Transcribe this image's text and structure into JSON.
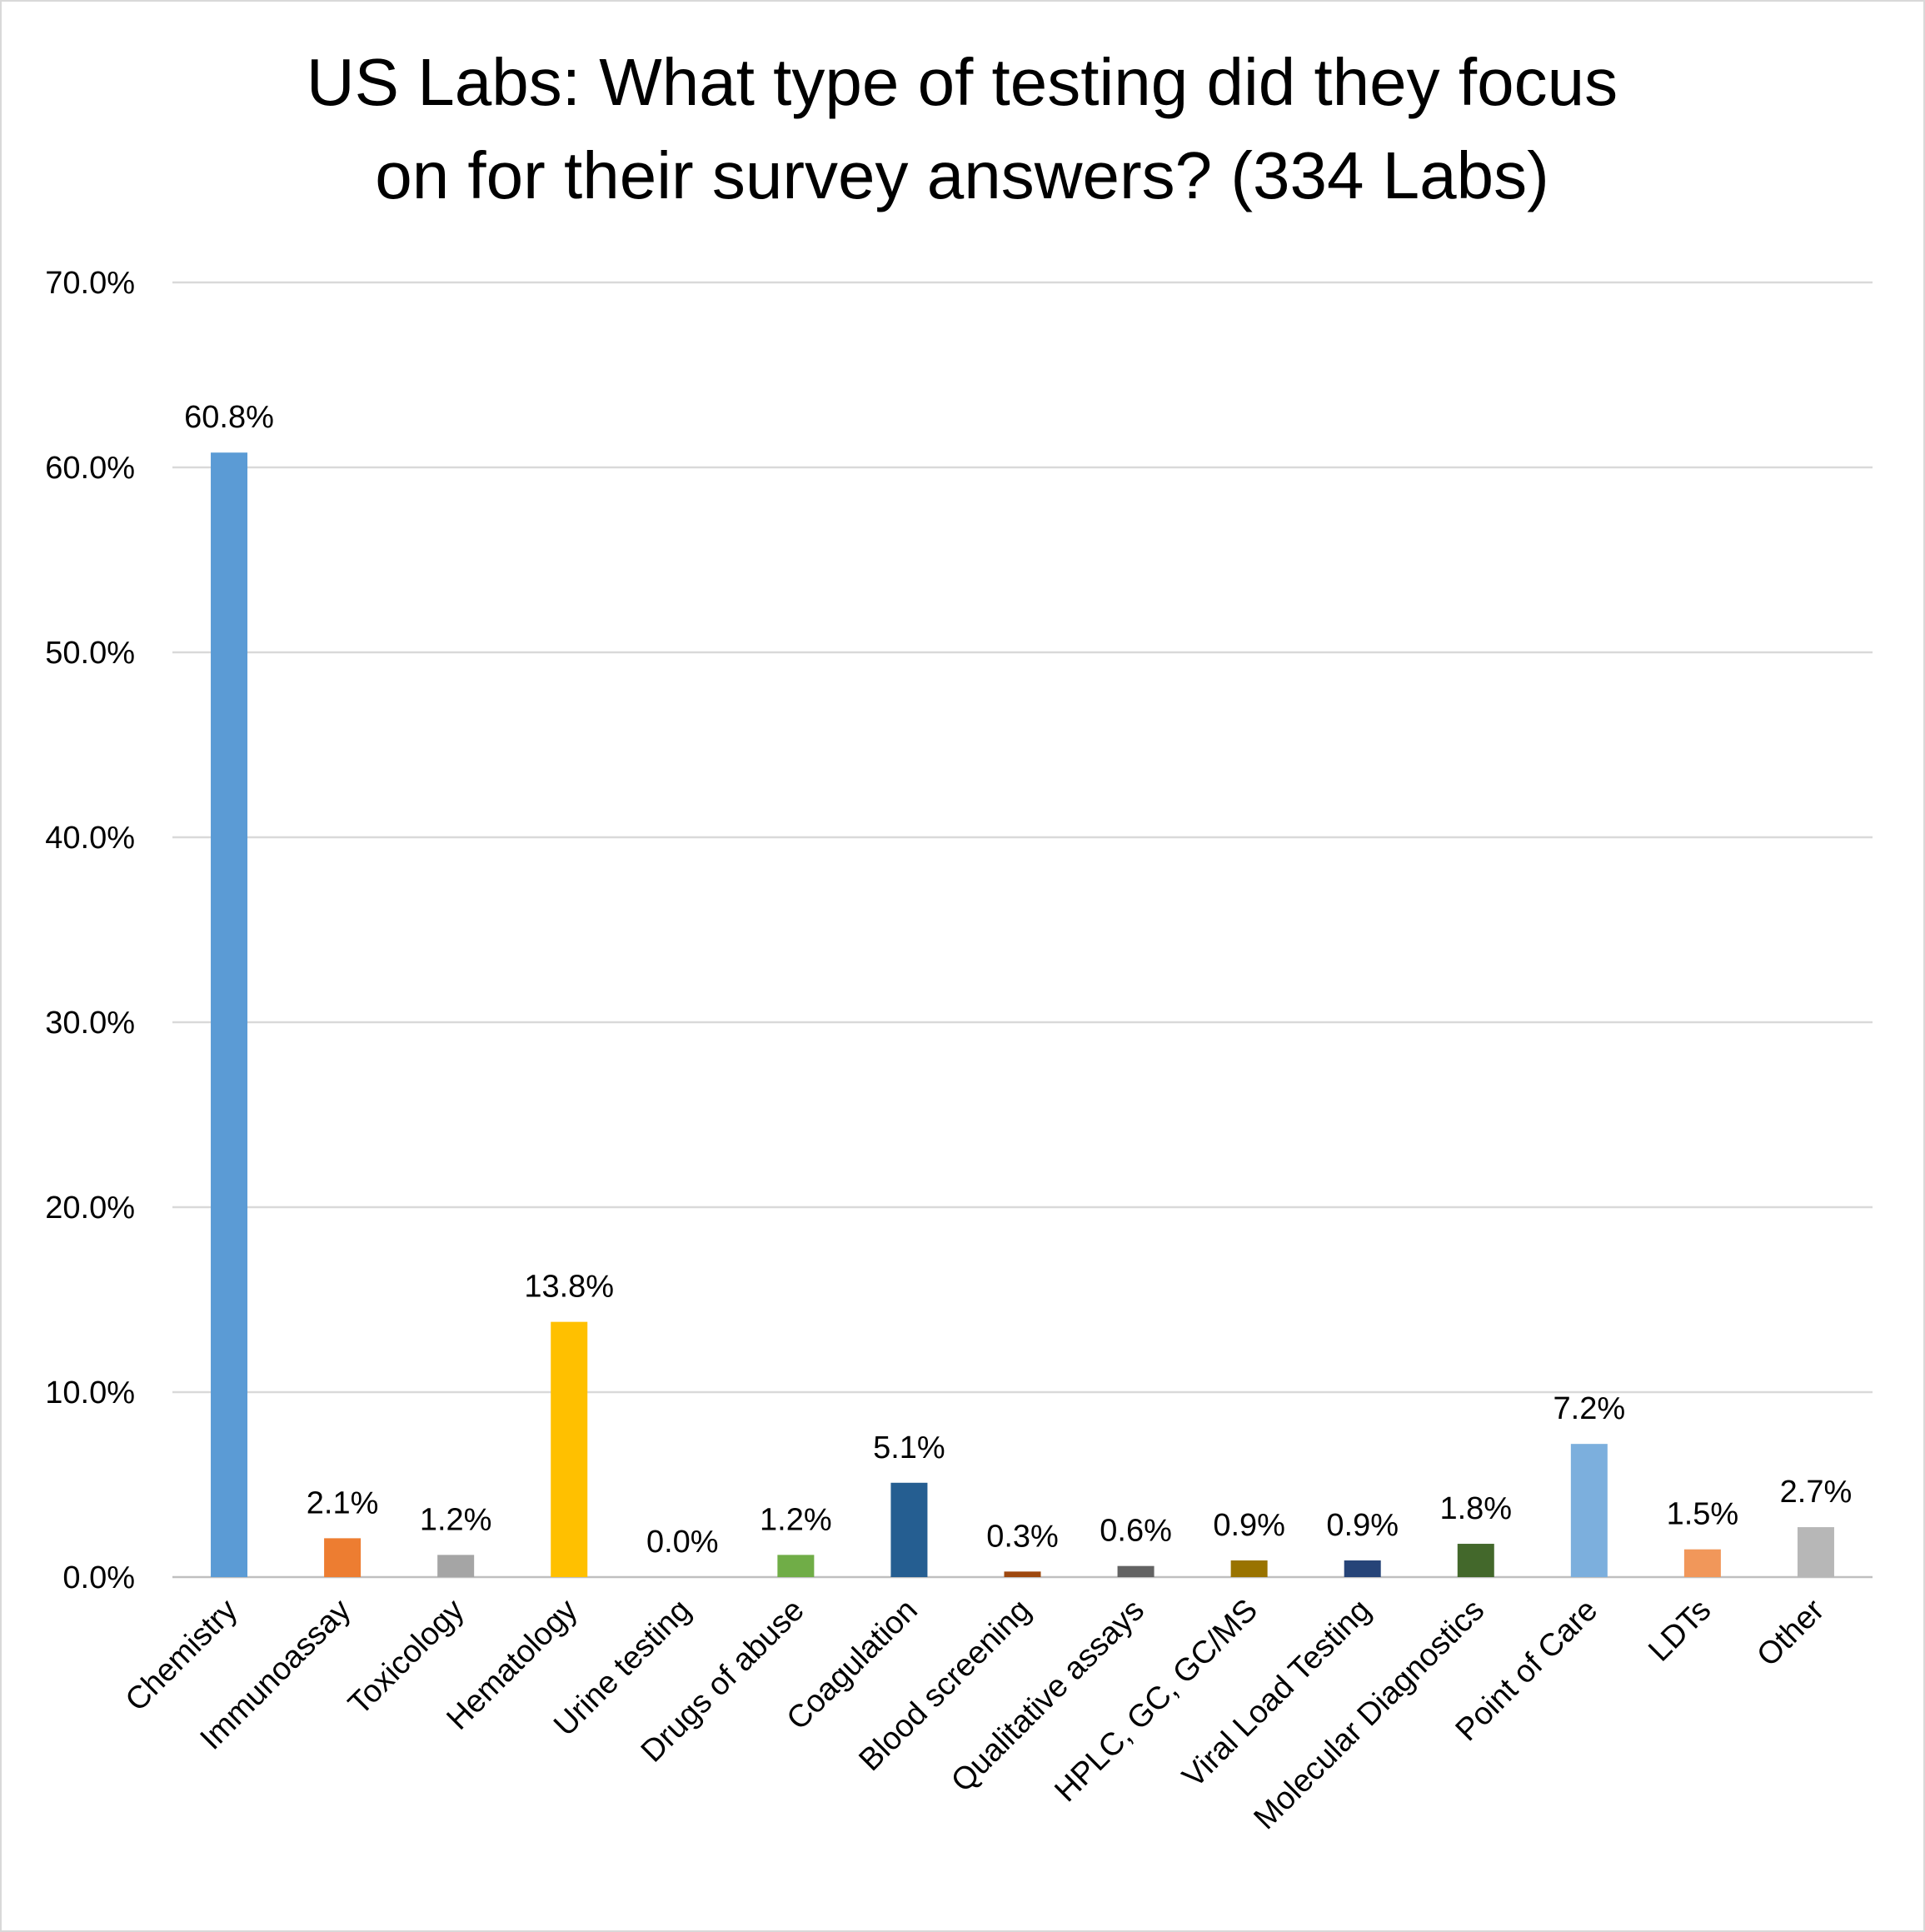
{
  "chart_data": {
    "type": "bar",
    "title": "US Labs: What type of testing did they focus on for their survey answers? (334 Labs)",
    "title_lines": [
      "US Labs: What type of testing did they focus",
      "on for their survey answers? (334 Labs)"
    ],
    "xlabel": "",
    "ylabel": "",
    "ylim": [
      0,
      70
    ],
    "yticks": [
      0,
      10,
      20,
      30,
      40,
      50,
      60,
      70
    ],
    "ytick_labels": [
      "0.0%",
      "10.0%",
      "20.0%",
      "30.0%",
      "40.0%",
      "50.0%",
      "60.0%",
      "70.0%"
    ],
    "grid": true,
    "legend": "none",
    "categories": [
      "Chemistry",
      "Immunoassay",
      "Toxicology",
      "Hematology",
      "Urine testing",
      "Drugs of abuse",
      "Coagulation",
      "Blood screening",
      "Qualitative assays",
      "HPLC, GC, GC/MS",
      "Viral Load Testing",
      "Molecular Diagnostics",
      "Point of Care",
      "LDTs",
      "Other"
    ],
    "values": [
      60.8,
      2.1,
      1.2,
      13.8,
      0.0,
      1.2,
      5.1,
      0.3,
      0.6,
      0.9,
      0.9,
      1.8,
      7.2,
      1.5,
      2.7
    ],
    "data_labels": [
      "60.8%",
      "2.1%",
      "1.2%",
      "13.8%",
      "0.0%",
      "1.2%",
      "5.1%",
      "0.3%",
      "0.6%",
      "0.9%",
      "0.9%",
      "1.8%",
      "7.2%",
      "1.5%",
      "2.7%"
    ],
    "colors": [
      "#5B9BD5",
      "#ED7D31",
      "#A5A5A5",
      "#FFC000",
      "#4472C4",
      "#70AD47",
      "#255E91",
      "#9E480E",
      "#636363",
      "#997300",
      "#264478",
      "#43682B",
      "#7CAFDD",
      "#F1975A",
      "#B7B7B7"
    ]
  }
}
